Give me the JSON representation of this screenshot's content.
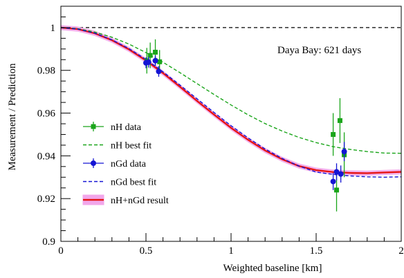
{
  "chart_data": {
    "type": "scatter",
    "xlabel": "Weighted baseline [km]",
    "ylabel": "Measurement / Prediction",
    "xlim": [
      0,
      2
    ],
    "ylim": [
      0.9,
      1.01
    ],
    "xticks": [
      0,
      0.5,
      1,
      1.5,
      2
    ],
    "xtick_labels": [
      "0",
      "0.5",
      "1",
      "1.5",
      "2"
    ],
    "yticks": [
      0.9,
      0.92,
      0.94,
      0.96,
      0.98,
      1
    ],
    "ytick_labels": [
      "0.9",
      "0.92",
      "0.94",
      "0.96",
      "0.98",
      "1"
    ],
    "reference_line": {
      "y": 1,
      "style": "dashed",
      "color": "#000000"
    },
    "annotation": "Daya Bay: 621 days",
    "legend_position": "center-left",
    "series": [
      {
        "name": "nH data",
        "kind": "points",
        "marker": "square",
        "color": "#1aa51a",
        "points": [
          {
            "x": 0.505,
            "y": 0.9845,
            "err": 0.006
          },
          {
            "x": 0.525,
            "y": 0.987,
            "err": 0.006
          },
          {
            "x": 0.555,
            "y": 0.9885,
            "err": 0.006
          },
          {
            "x": 0.58,
            "y": 0.984,
            "err": 0.0055
          },
          {
            "x": 1.6,
            "y": 0.95,
            "err": 0.01
          },
          {
            "x": 1.62,
            "y": 0.924,
            "err": 0.01
          },
          {
            "x": 1.64,
            "y": 0.9565,
            "err": 0.0105
          },
          {
            "x": 1.665,
            "y": 0.9405,
            "err": 0.0105
          }
        ]
      },
      {
        "name": "nH best fit",
        "kind": "curve",
        "style": "dashed",
        "color": "#1aa51a",
        "x": [
          0,
          0.1,
          0.2,
          0.3,
          0.4,
          0.5,
          0.6,
          0.7,
          0.8,
          0.9,
          1.0,
          1.1,
          1.2,
          1.3,
          1.4,
          1.5,
          1.6,
          1.7,
          1.8,
          1.9,
          2.0
        ],
        "y": [
          1.0,
          0.9995,
          0.9979,
          0.9955,
          0.9923,
          0.9883,
          0.9838,
          0.9789,
          0.9738,
          0.9687,
          0.9638,
          0.9592,
          0.9551,
          0.9516,
          0.9486,
          0.9462,
          0.9443,
          0.943,
          0.942,
          0.9413,
          0.9412
        ]
      },
      {
        "name": "nGd data",
        "kind": "points",
        "marker": "circle",
        "color": "#1414d4",
        "points": [
          {
            "x": 0.5,
            "y": 0.9835,
            "err": 0.0025
          },
          {
            "x": 0.515,
            "y": 0.9838,
            "err": 0.0025
          },
          {
            "x": 0.555,
            "y": 0.9845,
            "err": 0.0025
          },
          {
            "x": 0.575,
            "y": 0.9795,
            "err": 0.0025
          },
          {
            "x": 1.6,
            "y": 0.928,
            "err": 0.004
          },
          {
            "x": 1.62,
            "y": 0.9325,
            "err": 0.004
          },
          {
            "x": 1.645,
            "y": 0.9315,
            "err": 0.004
          },
          {
            "x": 1.665,
            "y": 0.942,
            "err": 0.0045
          }
        ]
      },
      {
        "name": "nGd best fit",
        "kind": "curve",
        "style": "dashed",
        "color": "#1414d4",
        "x": [
          0,
          0.1,
          0.2,
          0.3,
          0.4,
          0.5,
          0.6,
          0.7,
          0.8,
          0.9,
          1.0,
          1.1,
          1.2,
          1.3,
          1.4,
          1.5,
          1.6,
          1.7,
          1.8,
          1.9,
          2.0
        ],
        "y": [
          1.0,
          0.9993,
          0.9974,
          0.9943,
          0.9902,
          0.9851,
          0.9793,
          0.9731,
          0.9667,
          0.9603,
          0.9541,
          0.9484,
          0.9432,
          0.9388,
          0.9352,
          0.9324,
          0.9313,
          0.9306,
          0.9302,
          0.93,
          0.9302
        ]
      },
      {
        "name": "nH+nGd result",
        "kind": "curve_band",
        "style": "solid",
        "color": "#e61414",
        "band_color": "#f2a6ea",
        "band_halfwidth": 0.0012,
        "x": [
          0,
          0.1,
          0.2,
          0.3,
          0.4,
          0.5,
          0.6,
          0.7,
          0.8,
          0.9,
          1.0,
          1.1,
          1.2,
          1.3,
          1.4,
          1.5,
          1.6,
          1.7,
          1.8,
          1.9,
          2.0
        ],
        "y": [
          1.0,
          0.9993,
          0.9973,
          0.9941,
          0.9898,
          0.9846,
          0.9787,
          0.9723,
          0.9657,
          0.9593,
          0.9531,
          0.9475,
          0.9425,
          0.9384,
          0.9352,
          0.9333,
          0.9324,
          0.932,
          0.9319,
          0.9322,
          0.9325
        ]
      }
    ]
  }
}
